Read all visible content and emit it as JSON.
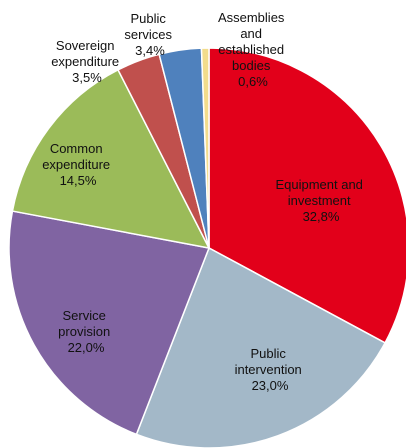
{
  "chart_data": {
    "type": "pie",
    "title": "",
    "slices": [
      {
        "label": "Equipment and investment",
        "value": 32.8,
        "value_label": "32,8%",
        "color": "#e2001a"
      },
      {
        "label": "Public intervention",
        "value": 23.0,
        "value_label": "23,0%",
        "color": "#a3b8c8"
      },
      {
        "label": "Service provision",
        "value": 22.0,
        "value_label": "22,0%",
        "color": "#8064a2"
      },
      {
        "label": "Common expenditure",
        "value": 14.5,
        "value_label": "14,5%",
        "color": "#9bbb59"
      },
      {
        "label": "Sovereign expenditure",
        "value": 3.5,
        "value_label": "3,5%",
        "color": "#c0504d"
      },
      {
        "label": "Public services",
        "value": 3.4,
        "value_label": "3,4%",
        "color": "#4f81bd"
      },
      {
        "label": "Assemblies and established bodies",
        "value": 0.6,
        "value_label": "0,6%",
        "color": "#f2dc8c"
      }
    ]
  }
}
